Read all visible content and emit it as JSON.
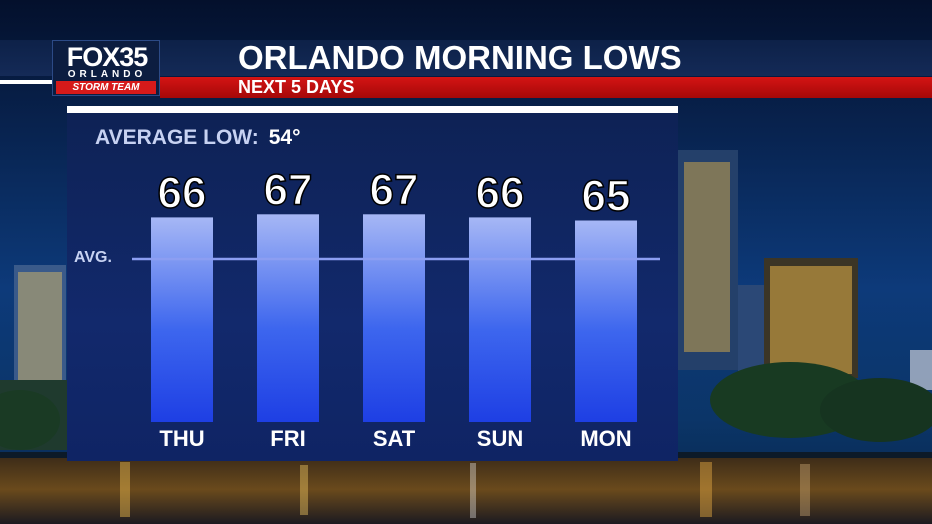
{
  "header": {
    "logo_brand": "FOX35",
    "logo_city": "ORLANDO",
    "logo_team": "STORM TEAM",
    "title": "ORLANDO MORNING LOWS",
    "subtitle": "NEXT 5 DAYS"
  },
  "panel": {
    "average_label": "AVERAGE LOW:",
    "average_value": "54°",
    "avg_line_label": "AVG."
  },
  "chart_data": {
    "type": "bar",
    "categories": [
      "THU",
      "FRI",
      "SAT",
      "SUN",
      "MON"
    ],
    "values": [
      66,
      67,
      67,
      66,
      65
    ],
    "value_labels": [
      "66",
      "67",
      "67",
      "66",
      "65"
    ],
    "title": "ORLANDO MORNING LOWS",
    "subtitle": "NEXT 5 DAYS",
    "average": 54,
    "ylim": [
      0,
      68
    ],
    "grid": false,
    "bar_gradient": [
      "#a6b7f5",
      "#3d66ee",
      "#1e3fe4"
    ],
    "line_color": "#8c9ef2"
  },
  "colors": {
    "header_red": "#c40f0f",
    "panel_blue": "#12296c",
    "text_white": "#ffffff"
  }
}
